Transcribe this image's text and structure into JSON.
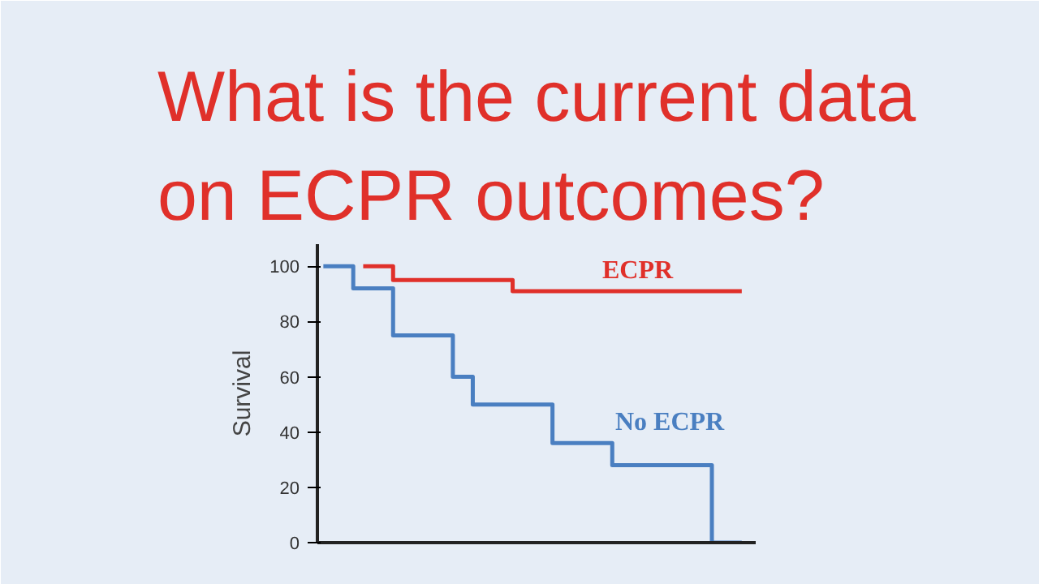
{
  "chart_data": {
    "type": "step",
    "title": "What is the current data\non ECPR outcomes?",
    "ylabel": "Survival",
    "categories": [
      null,
      null,
      null,
      null,
      null,
      null,
      null,
      null,
      null,
      null,
      null,
      null,
      null,
      null,
      null,
      null,
      null,
      null,
      null,
      null,
      null,
      null
    ],
    "series": [
      {
        "name": "ECPR",
        "color": "#e0302a",
        "values": [
          null,
          null,
          100,
          100,
          95,
          95,
          95,
          95,
          95,
          95,
          91,
          91,
          91,
          91,
          91,
          91,
          91,
          91,
          91,
          91,
          91,
          91
        ]
      },
      {
        "name": "No ECPR",
        "color": "#4a7fc1",
        "values": [
          100,
          100,
          92,
          92,
          75,
          75,
          75,
          60,
          50,
          50,
          50,
          50,
          36,
          36,
          36,
          28,
          28,
          28,
          28,
          28,
          0,
          0
        ]
      }
    ],
    "ylim": [
      0,
      108
    ],
    "yticks": [
      0,
      20,
      40,
      60,
      80,
      100
    ],
    "tick_labels": "y",
    "grid": false,
    "legend": false
  }
}
